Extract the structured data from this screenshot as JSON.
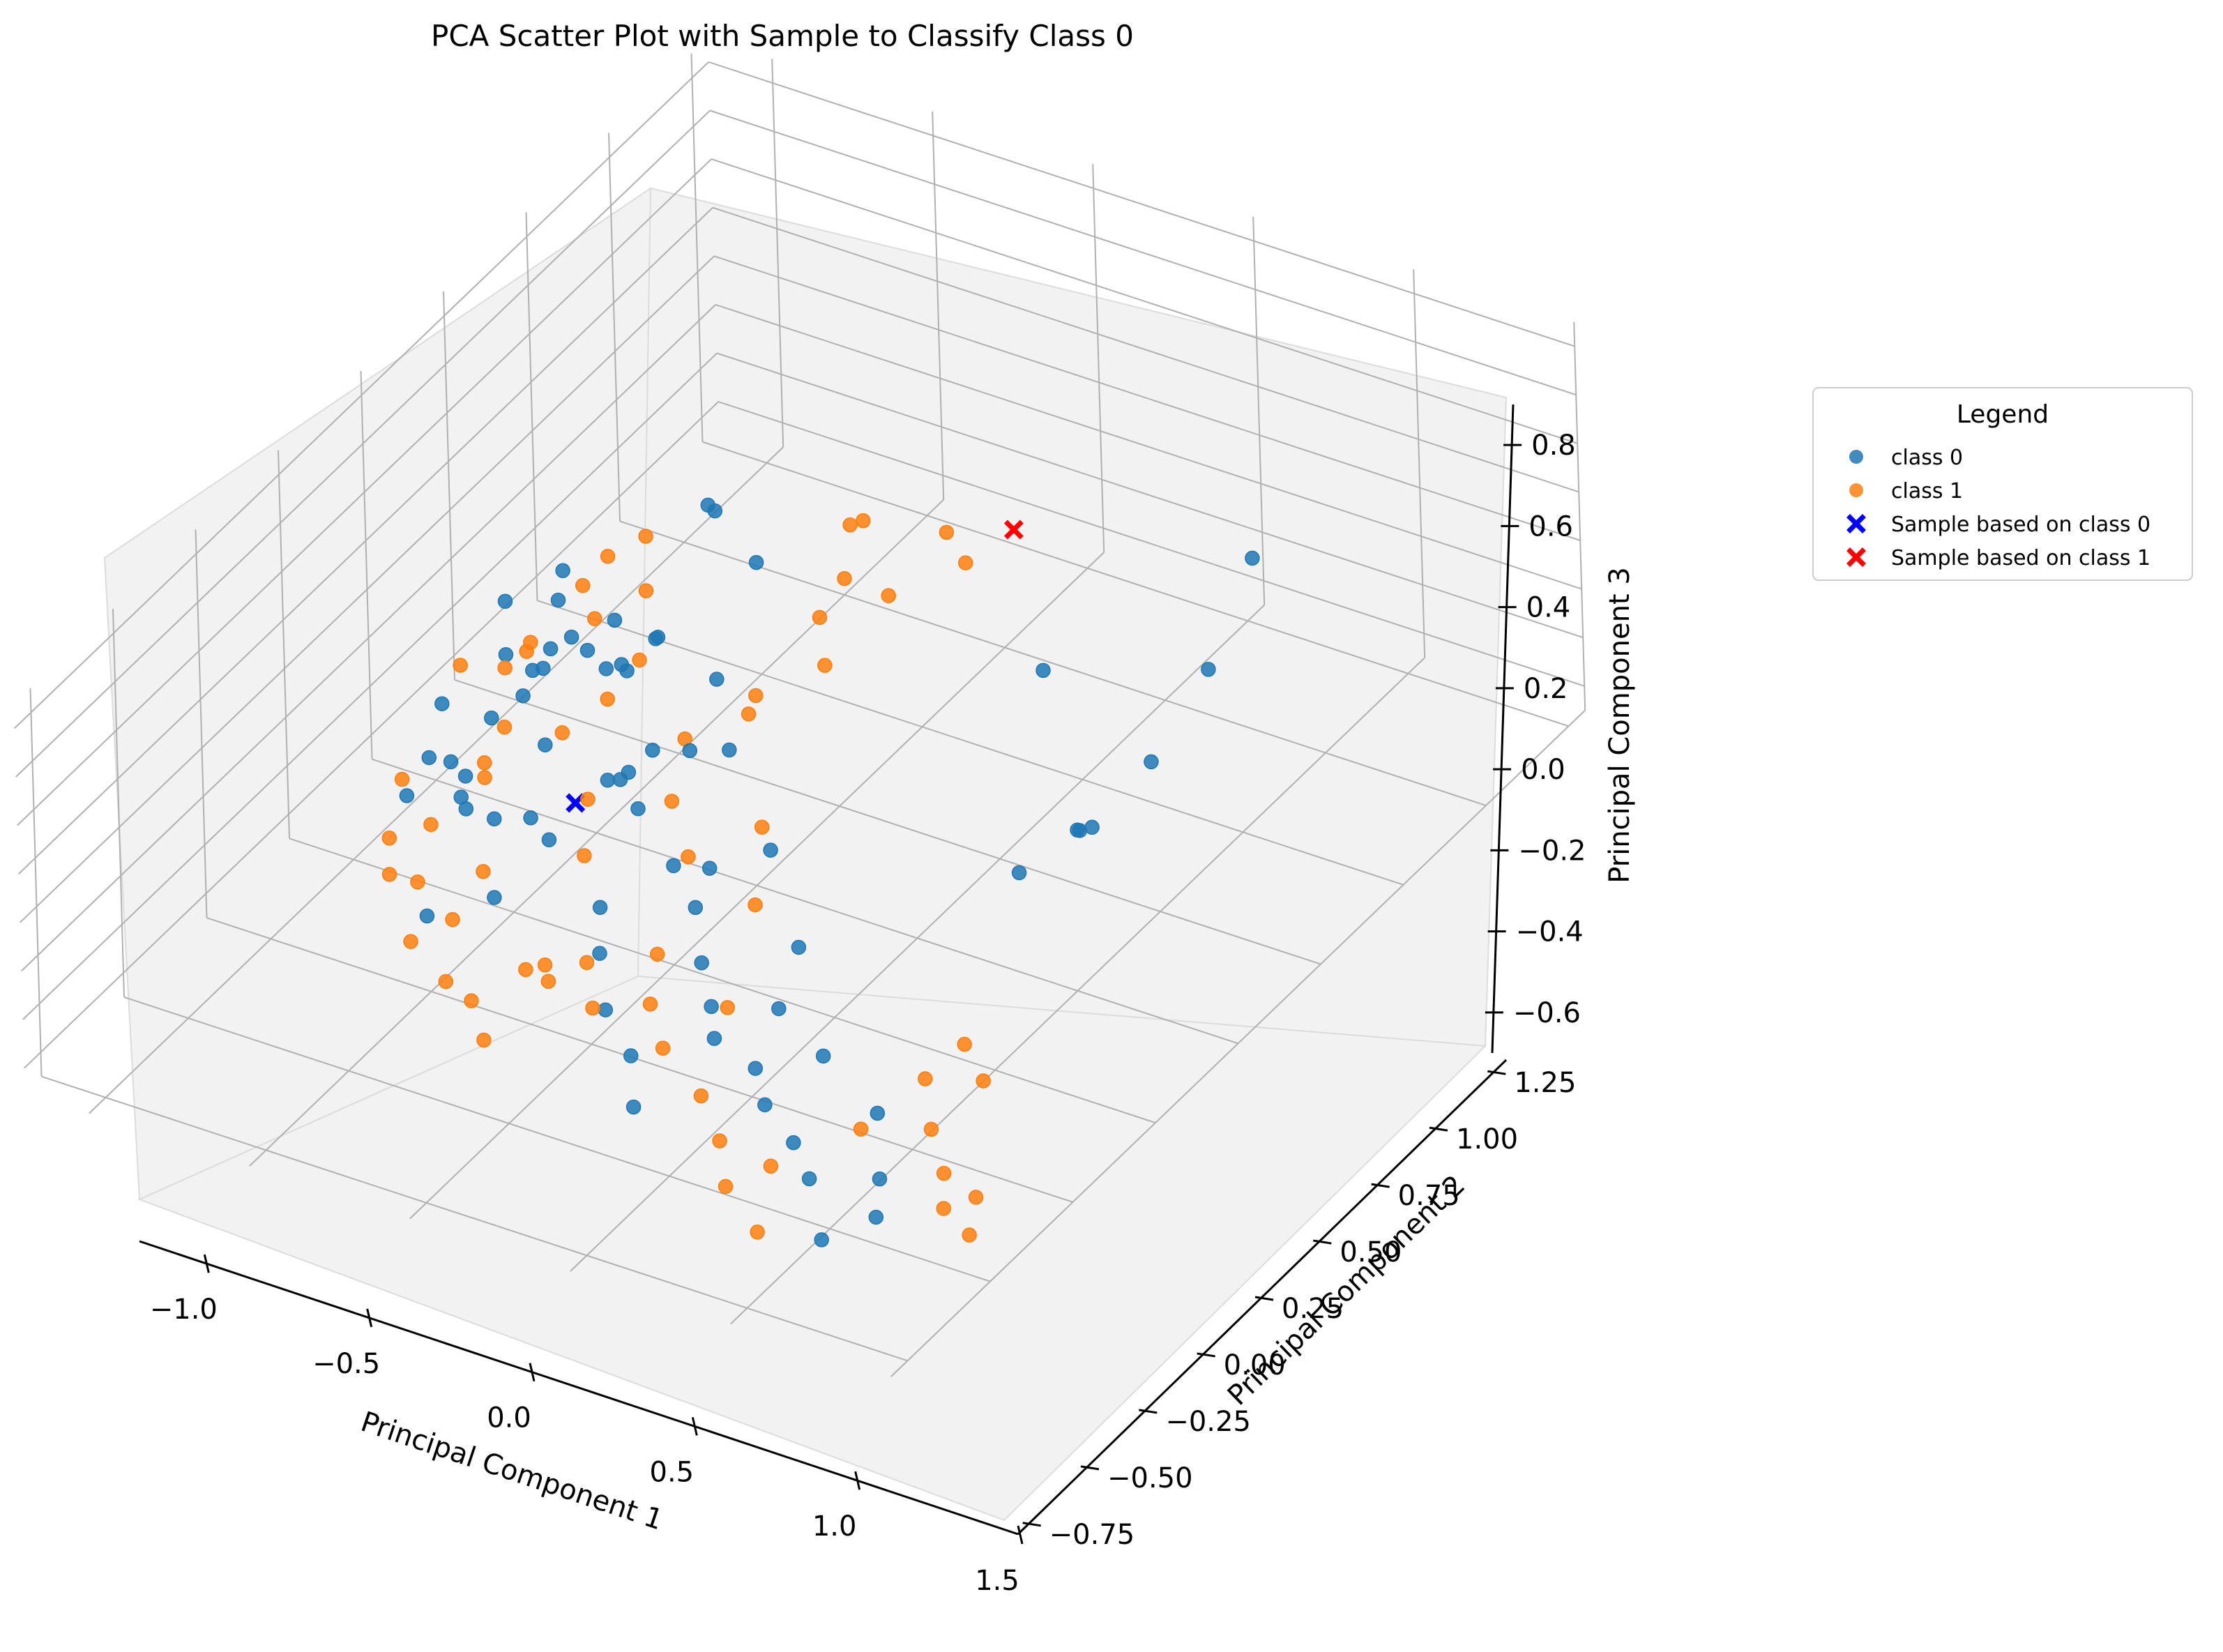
{
  "chart_data": {
    "type": "scatter",
    "projection": "3d",
    "title": "PCA Scatter Plot with Sample to Classify Class 0",
    "xlabel": "Principal Component 1",
    "ylabel": "Principal Component 2",
    "zlabel": "Principal Component 3",
    "xlim": [
      -1.2,
      1.5
    ],
    "ylim": [
      -0.8,
      1.3
    ],
    "zlim": [
      -0.7,
      0.9
    ],
    "x_ticks": [
      "−1.0",
      "−0.5",
      "0.0",
      "0.5",
      "1.0",
      "1.5"
    ],
    "x_tick_values": [
      -1.0,
      -0.5,
      0.0,
      0.5,
      1.0,
      1.5
    ],
    "y_ticks": [
      "−0.75",
      "−0.50",
      "−0.25",
      "0.00",
      "0.25",
      "0.50",
      "0.75",
      "1.00",
      "1.25"
    ],
    "y_tick_values": [
      -0.75,
      -0.5,
      -0.25,
      0.0,
      0.25,
      0.5,
      0.75,
      1.0,
      1.25
    ],
    "z_ticks": [
      "−0.6",
      "−0.4",
      "−0.2",
      "0.0",
      "0.2",
      "0.4",
      "0.6",
      "0.8"
    ],
    "z_tick_values": [
      -0.6,
      -0.4,
      -0.2,
      0.0,
      0.2,
      0.4,
      0.6,
      0.8
    ],
    "grid": true,
    "legend": {
      "title": "Legend",
      "placement": "outside right, upper",
      "entries": [
        "class 0",
        "class 1",
        "Sample based on class 0",
        "Sample based on class 1"
      ]
    },
    "colors": {
      "class 0": "#1f77b4",
      "class 1": "#ff7f0e",
      "Sample based on class 0": "#0000ff",
      "Sample based on class 1": "#ff0000",
      "pane": "#f2f2f2",
      "grid": "#b0b0b0"
    },
    "series": [
      {
        "name": "class 0",
        "marker": "circle",
        "points": [
          [
            -0.62,
            0.45,
            -0.32
          ],
          [
            -0.55,
            0.4,
            -0.25
          ],
          [
            -0.74,
            0.3,
            -0.2
          ],
          [
            -0.7,
            0.38,
            -0.15
          ],
          [
            -0.78,
            0.26,
            -0.1
          ],
          [
            -0.66,
            0.28,
            -0.05
          ],
          [
            -0.6,
            0.2,
            0.0
          ],
          [
            -0.52,
            0.34,
            0.05
          ],
          [
            -0.48,
            0.22,
            0.1
          ],
          [
            -0.58,
            0.12,
            0.0
          ],
          [
            -0.66,
            0.1,
            -0.1
          ],
          [
            -0.44,
            0.05,
            -0.05
          ],
          [
            -0.38,
            0.18,
            0.12
          ],
          [
            -0.3,
            0.26,
            0.18
          ],
          [
            -0.28,
            0.4,
            0.55
          ],
          [
            -0.28,
            0.42,
            0.5
          ],
          [
            -0.24,
            0.5,
            0.2
          ],
          [
            -0.35,
            0.3,
            0.1
          ],
          [
            -0.86,
            0.1,
            -0.35
          ],
          [
            -0.88,
            0.05,
            -0.45
          ],
          [
            -0.9,
            0.18,
            -0.25
          ],
          [
            -0.92,
            0.22,
            -0.55
          ],
          [
            -0.72,
            0.06,
            -0.4
          ],
          [
            -0.62,
            -0.02,
            -0.3
          ],
          [
            -0.5,
            -0.05,
            -0.25
          ],
          [
            -0.46,
            0.02,
            -0.32
          ],
          [
            -0.34,
            -0.04,
            -0.28
          ],
          [
            -0.3,
            0.1,
            -0.2
          ],
          [
            -0.22,
            0.16,
            -0.12
          ],
          [
            -0.18,
            0.05,
            -0.05
          ],
          [
            -0.1,
            0.0,
            -0.1
          ],
          [
            -0.06,
            0.12,
            0.0
          ],
          [
            0.0,
            0.18,
            -0.05
          ],
          [
            0.06,
            -0.05,
            -0.2
          ],
          [
            0.12,
            0.0,
            -0.25
          ],
          [
            0.2,
            -0.12,
            -0.22
          ],
          [
            0.26,
            0.05,
            -0.18
          ],
          [
            0.3,
            -0.2,
            -0.3
          ],
          [
            0.38,
            -0.25,
            -0.38
          ],
          [
            0.44,
            -0.3,
            -0.42
          ],
          [
            0.5,
            -0.1,
            -0.28
          ],
          [
            0.56,
            -0.22,
            -0.35
          ],
          [
            0.62,
            -0.35,
            -0.4
          ],
          [
            0.7,
            -0.4,
            -0.45
          ],
          [
            0.76,
            -0.28,
            -0.38
          ],
          [
            0.84,
            -0.45,
            -0.48
          ],
          [
            0.94,
            -0.5,
            -0.52
          ],
          [
            1.0,
            -0.35,
            -0.42
          ],
          [
            1.08,
            -0.6,
            -0.58
          ],
          [
            1.14,
            -0.48,
            -0.46
          ],
          [
            1.2,
            -0.55,
            -0.5
          ],
          [
            0.88,
            0.2,
            -0.2
          ],
          [
            0.96,
            0.3,
            -0.12
          ],
          [
            1.06,
            0.25,
            0.0
          ],
          [
            1.16,
            0.12,
            0.2
          ],
          [
            1.22,
            0.28,
            0.3
          ],
          [
            1.28,
            0.4,
            0.55
          ],
          [
            1.3,
            0.52,
            0.86
          ],
          [
            0.76,
            0.4,
            0.32
          ],
          [
            -0.1,
            -0.12,
            -0.35
          ],
          [
            -0.02,
            -0.2,
            -0.4
          ],
          [
            0.1,
            -0.3,
            -0.45
          ],
          [
            0.24,
            -0.36,
            -0.5
          ],
          [
            0.34,
            -0.45,
            -0.55
          ],
          [
            -0.4,
            -0.15,
            -0.4
          ],
          [
            -0.56,
            -0.2,
            -0.48
          ],
          [
            -0.64,
            0.0,
            -0.2
          ],
          [
            -0.82,
            0.3,
            0.05
          ],
          [
            -0.76,
            0.4,
            -0.05
          ],
          [
            -0.7,
            0.36,
            0.15
          ],
          [
            -0.26,
            0.1,
            -0.18
          ],
          [
            -0.14,
            0.28,
            0.05
          ]
        ]
      },
      {
        "name": "class 1",
        "marker": "circle",
        "points": [
          [
            -0.6,
            0.4,
            0.2
          ],
          [
            -0.54,
            0.3,
            0.1
          ],
          [
            -0.72,
            0.2,
            -0.05
          ],
          [
            -0.68,
            0.24,
            0.02
          ],
          [
            -0.62,
            0.1,
            -0.12
          ],
          [
            -0.58,
            0.0,
            -0.18
          ],
          [
            -0.46,
            0.12,
            -0.1
          ],
          [
            -0.4,
            0.2,
            -0.04
          ],
          [
            -0.36,
            0.26,
            0.06
          ],
          [
            -0.3,
            0.04,
            -0.2
          ],
          [
            -0.22,
            -0.05,
            -0.28
          ],
          [
            -0.1,
            0.1,
            -0.2
          ],
          [
            -0.04,
            0.3,
            0.0
          ],
          [
            0.04,
            0.42,
            0.2
          ],
          [
            0.08,
            0.48,
            0.52
          ],
          [
            0.1,
            0.5,
            0.52
          ],
          [
            0.1,
            0.44,
            0.36
          ],
          [
            0.18,
            0.3,
            0.22
          ],
          [
            0.28,
            0.4,
            0.42
          ],
          [
            0.34,
            0.52,
            0.55
          ],
          [
            0.44,
            0.48,
            0.52
          ],
          [
            -0.86,
            0.2,
            -0.1
          ],
          [
            -0.84,
            0.0,
            -0.3
          ],
          [
            -0.8,
            -0.08,
            -0.42
          ],
          [
            -0.76,
            -0.12,
            -0.5
          ],
          [
            -0.7,
            -0.05,
            -0.36
          ],
          [
            -0.64,
            -0.15,
            -0.44
          ],
          [
            -0.56,
            -0.25,
            -0.52
          ],
          [
            -0.48,
            -0.2,
            -0.46
          ],
          [
            -0.4,
            -0.3,
            -0.55
          ],
          [
            -0.3,
            -0.32,
            -0.56
          ],
          [
            -0.2,
            -0.38,
            -0.6
          ],
          [
            -0.12,
            -0.26,
            -0.48
          ],
          [
            -0.04,
            -0.22,
            -0.42
          ],
          [
            0.06,
            -0.3,
            -0.46
          ],
          [
            0.14,
            -0.18,
            -0.36
          ],
          [
            0.22,
            -0.28,
            -0.4
          ],
          [
            0.32,
            -0.34,
            -0.46
          ],
          [
            0.42,
            -0.24,
            -0.38
          ],
          [
            0.5,
            -0.4,
            -0.5
          ],
          [
            0.64,
            -0.48,
            -0.52
          ],
          [
            0.74,
            -0.56,
            -0.56
          ],
          [
            0.82,
            -0.5,
            -0.52
          ],
          [
            0.9,
            -0.62,
            -0.6
          ],
          [
            1.0,
            -0.4,
            -0.42
          ],
          [
            1.1,
            -0.3,
            -0.3
          ],
          [
            1.2,
            -0.38,
            -0.36
          ],
          [
            1.3,
            -0.44,
            -0.42
          ],
          [
            1.36,
            -0.5,
            -0.46
          ],
          [
            1.42,
            -0.46,
            -0.44
          ],
          [
            1.46,
            -0.52,
            -0.5
          ],
          [
            1.12,
            -0.2,
            -0.28
          ],
          [
            1.24,
            -0.26,
            -0.3
          ],
          [
            -0.9,
            0.3,
            -0.65
          ],
          [
            -0.7,
            0.1,
            -0.75
          ],
          [
            -0.3,
            -0.1,
            -0.7
          ],
          [
            -0.34,
            -0.12,
            -0.71
          ],
          [
            -0.8,
            0.34,
            -0.2
          ],
          [
            -0.66,
            0.38,
            0.08
          ],
          [
            -0.5,
            0.42,
            0.3
          ],
          [
            -0.44,
            0.36,
            0.18
          ],
          [
            0.0,
            0.05,
            -0.32
          ],
          [
            0.16,
            0.12,
            -0.22
          ],
          [
            0.26,
            0.0,
            -0.34
          ],
          [
            -0.16,
            0.2,
            -0.1
          ],
          [
            0.0,
            0.24,
            0.02
          ]
        ]
      },
      {
        "name": "Sample based on class 0",
        "marker": "x",
        "points": [
          [
            -0.35,
            0.05,
            -0.25
          ]
        ]
      },
      {
        "name": "Sample based on class 1",
        "marker": "x",
        "points": [
          [
            0.52,
            0.55,
            0.6
          ]
        ]
      }
    ]
  }
}
